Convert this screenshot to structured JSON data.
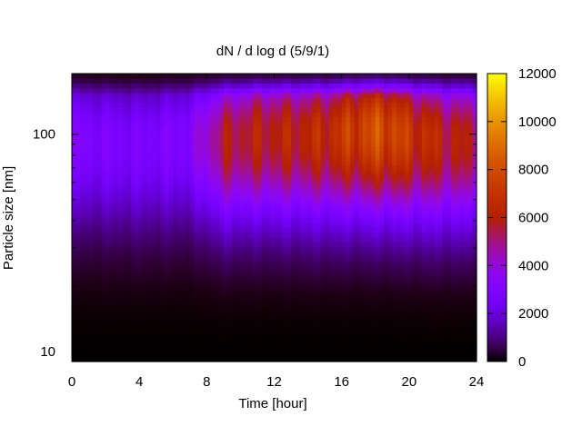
{
  "chart_data": {
    "type": "heatmap",
    "title": "dN / d log d (5/9/1)",
    "xlabel": "Time [hour]",
    "ylabel": "Particle size [nm]",
    "x_range": [
      0,
      24
    ],
    "x_ticks": [
      0,
      4,
      8,
      12,
      16,
      20,
      24
    ],
    "y_scale": "log",
    "y_range": [
      9,
      190
    ],
    "y_ticks": [
      10,
      100
    ],
    "colorbar": {
      "range": [
        0,
        12000
      ],
      "ticks": [
        0,
        2000,
        4000,
        6000,
        8000,
        10000,
        12000
      ],
      "palette": "black-purple-red-orange-yellow"
    },
    "grid": false,
    "legend": "colorbar-right",
    "intensity_profile": [
      {
        "time": 0,
        "peak_size_nm": 95,
        "peak_value": 3500
      },
      {
        "time": 4,
        "peak_size_nm": 90,
        "peak_value": 3300
      },
      {
        "time": 7,
        "peak_size_nm": 95,
        "peak_value": 3600
      },
      {
        "time": 9,
        "peak_size_nm": 95,
        "peak_value": 6500
      },
      {
        "time": 11,
        "peak_size_nm": 100,
        "peak_value": 7000
      },
      {
        "time": 13,
        "peak_size_nm": 100,
        "peak_value": 7200
      },
      {
        "time": 15,
        "peak_size_nm": 100,
        "peak_value": 7600
      },
      {
        "time": 17,
        "peak_size_nm": 105,
        "peak_value": 8800
      },
      {
        "time": 18.5,
        "peak_size_nm": 105,
        "peak_value": 9400
      },
      {
        "time": 20,
        "peak_size_nm": 100,
        "peak_value": 8200
      },
      {
        "time": 22,
        "peak_size_nm": 95,
        "peak_value": 7200
      },
      {
        "time": 24,
        "peak_size_nm": 95,
        "peak_value": 6500
      }
    ]
  }
}
